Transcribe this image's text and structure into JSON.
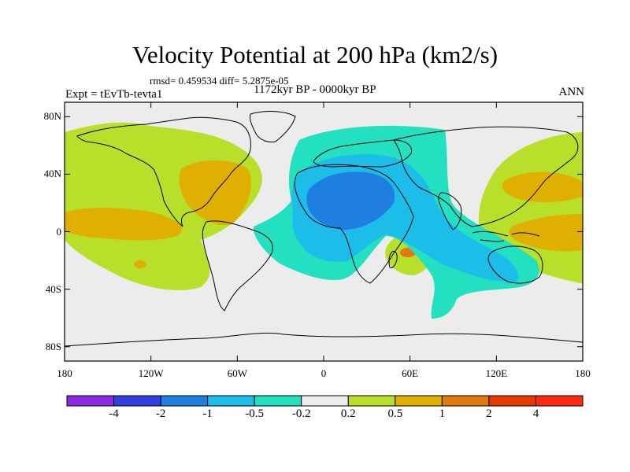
{
  "title": "Velocity Potential at 200 hPa (km2/s)",
  "stats": "rmsd= 0.459534 diff= 5.2875e-05",
  "period": "1172kyr BP - 0000kyr BP",
  "experiment": "Expt = tEvTb-tevta1",
  "season": "ANN",
  "map": {
    "projection": "cylindrical equidistant",
    "lat_range": [
      -90,
      90
    ],
    "lon_range": [
      -180,
      180
    ],
    "y_ticks": [
      {
        "lat": 80,
        "label": "80N"
      },
      {
        "lat": 40,
        "label": "40N"
      },
      {
        "lat": 0,
        "label": "0"
      },
      {
        "lat": -40,
        "label": "40S"
      },
      {
        "lat": -80,
        "label": "80S"
      }
    ],
    "x_ticks": [
      {
        "lon": -180,
        "label": "180"
      },
      {
        "lon": -120,
        "label": "120W"
      },
      {
        "lon": -60,
        "label": "60W"
      },
      {
        "lon": 0,
        "label": "0"
      },
      {
        "lon": 60,
        "label": "60E"
      },
      {
        "lon": 120,
        "label": "120E"
      },
      {
        "lon": 180,
        "label": "180"
      }
    ]
  },
  "colorbar": {
    "colors": [
      "#8a2be2",
      "#2f3fe0",
      "#1e7fe0",
      "#1cbde8",
      "#22e0c0",
      "#ececec",
      "#b8e02a",
      "#e0b000",
      "#e07a10",
      "#e83a00",
      "#ff2a10"
    ],
    "labels": [
      "-4",
      "-2",
      "-1",
      "-0.5",
      "-0.2",
      "0.2",
      "0.5",
      "1",
      "2",
      "4"
    ]
  },
  "fields": {
    "neutral_color": "#ececec",
    "negative_colors": {
      "weak": "#22e0c0",
      "moderate": "#1cbde8",
      "strong": "#1e7fe0"
    },
    "positive_colors": {
      "weak": "#b8e02a",
      "moderate": "#e0b000"
    },
    "land_color": "#000000"
  }
}
